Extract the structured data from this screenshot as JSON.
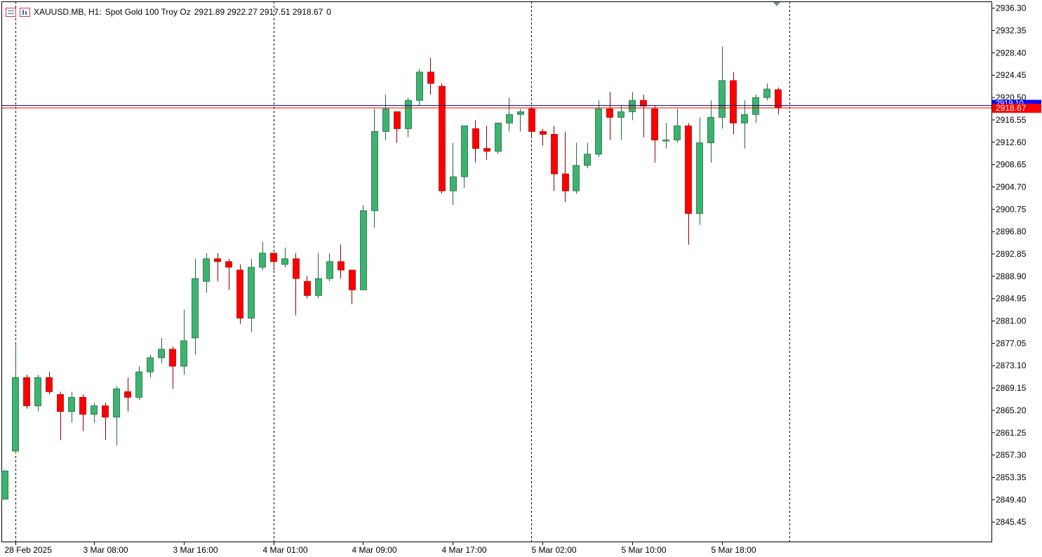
{
  "header": {
    "symbol": "XAUUSD.MB, H1:",
    "description": "Spot Gold 100 Troy Oz",
    "ohlc": "2921.89 2922.27 2917.51 2918.67",
    "extra": "0",
    "icons": [
      "list-icon",
      "chart-icon"
    ]
  },
  "colors": {
    "bull": "#3cb371",
    "bear": "#ff0000",
    "candle_outline": "#1f6b3a",
    "grid": "#000000",
    "bid_line": "#ff0000",
    "ask_line": "#000080",
    "bid_label_bg": "#ff0000",
    "ask_label_bg": "#0000ff"
  },
  "chart_data": {
    "type": "candlestick",
    "ylim": [
      2842.0,
      2937.5
    ],
    "y_ticks": [
      "2936.30",
      "2932.35",
      "2928.40",
      "2924.45",
      "2920.50",
      "2916.55",
      "2912.60",
      "2908.65",
      "2904.70",
      "2900.75",
      "2896.80",
      "2892.85",
      "2888.90",
      "2884.95",
      "2881.00",
      "2877.05",
      "2873.10",
      "2869.15",
      "2865.20",
      "2861.25",
      "2857.30",
      "2853.35",
      "2849.40",
      "2845.45"
    ],
    "x_labels": [
      "28 Feb 2025",
      "3 Mar 08:00",
      "3 Mar 16:00",
      "4 Mar 01:00",
      "4 Mar 09:00",
      "4 Mar 17:00",
      "5 Mar 02:00",
      "5 Mar 10:00",
      "5 Mar 18:00"
    ],
    "x_label_index": [
      1,
      8,
      16,
      24,
      32,
      40,
      48,
      56,
      64
    ],
    "day_separator_index": [
      1,
      24,
      47,
      70
    ],
    "bid_price": 2918.67,
    "bid_label": "2918.67",
    "ask_price": 2919.1,
    "ask_label": "2919.10",
    "candles": [
      [
        2849.5,
        2854.5,
        2849.5,
        2854.5
      ],
      [
        2858.0,
        2877.0,
        2857.5,
        2871.0
      ],
      [
        2871.0,
        2871.5,
        2865.5,
        2866.0
      ],
      [
        2866.0,
        2871.5,
        2865.0,
        2871.0
      ],
      [
        2871.0,
        2872.0,
        2868.0,
        2868.5
      ],
      [
        2868.0,
        2868.5,
        2860.0,
        2865.0
      ],
      [
        2865.0,
        2868.5,
        2863.0,
        2867.5
      ],
      [
        2867.5,
        2868.0,
        2861.5,
        2864.5
      ],
      [
        2864.5,
        2866.5,
        2863.0,
        2866.0
      ],
      [
        2866.0,
        2866.5,
        2860.0,
        2864.0
      ],
      [
        2864.0,
        2869.5,
        2859.0,
        2869.0
      ],
      [
        2868.5,
        2871.0,
        2865.0,
        2867.5
      ],
      [
        2867.5,
        2873.0,
        2867.0,
        2872.0
      ],
      [
        2872.0,
        2875.0,
        2871.0,
        2874.5
      ],
      [
        2874.5,
        2878.0,
        2873.5,
        2876.0
      ],
      [
        2876.0,
        2876.5,
        2869.0,
        2873.0
      ],
      [
        2873.0,
        2883.0,
        2871.5,
        2877.5
      ],
      [
        2878.0,
        2892.0,
        2875.0,
        2888.5
      ],
      [
        2888.0,
        2893.0,
        2886.0,
        2892.0
      ],
      [
        2892.0,
        2893.0,
        2888.0,
        2891.5
      ],
      [
        2891.5,
        2892.0,
        2886.5,
        2890.5
      ],
      [
        2890.0,
        2891.0,
        2880.5,
        2881.5
      ],
      [
        2881.5,
        2892.0,
        2879.0,
        2890.5
      ],
      [
        2890.5,
        2895.0,
        2890.0,
        2893.0
      ],
      [
        2893.0,
        2893.0,
        2890.0,
        2891.5
      ],
      [
        2891.0,
        2894.0,
        2890.5,
        2892.0
      ],
      [
        2892.0,
        2893.0,
        2882.0,
        2888.5
      ],
      [
        2888.0,
        2889.0,
        2885.0,
        2885.5
      ],
      [
        2885.5,
        2893.0,
        2885.0,
        2888.5
      ],
      [
        2888.5,
        2893.0,
        2888.0,
        2891.5
      ],
      [
        2891.5,
        2894.5,
        2888.5,
        2890.0
      ],
      [
        2890.0,
        2890.0,
        2884.0,
        2886.5
      ],
      [
        2886.5,
        2901.5,
        2886.5,
        2900.5
      ],
      [
        2900.5,
        2918.5,
        2897.5,
        2914.5
      ],
      [
        2914.5,
        2921.0,
        2913.0,
        2918.5
      ],
      [
        2918.0,
        2918.0,
        2912.5,
        2915.0
      ],
      [
        2915.0,
        2920.5,
        2913.5,
        2920.0
      ],
      [
        2920.0,
        2925.5,
        2919.0,
        2925.0
      ],
      [
        2925.0,
        2927.5,
        2921.0,
        2923.0
      ],
      [
        2922.5,
        2923.0,
        2903.5,
        2904.0
      ],
      [
        2904.0,
        2912.5,
        2901.5,
        2906.5
      ],
      [
        2906.5,
        2915.5,
        2904.5,
        2915.5
      ],
      [
        2915.0,
        2916.5,
        2909.0,
        2911.5
      ],
      [
        2911.5,
        2915.5,
        2909.5,
        2911.0
      ],
      [
        2911.0,
        2916.0,
        2910.5,
        2916.0
      ],
      [
        2916.0,
        2920.5,
        2914.5,
        2917.5
      ],
      [
        2917.5,
        2918.5,
        2914.5,
        2918.0
      ],
      [
        2918.5,
        2918.5,
        2913.5,
        2914.5
      ],
      [
        2914.5,
        2915.0,
        2912.0,
        2914.0
      ],
      [
        2914.0,
        2915.5,
        2904.0,
        2907.0
      ],
      [
        2907.0,
        2914.5,
        2902.0,
        2904.0
      ],
      [
        2904.0,
        2912.5,
        2903.5,
        2908.5
      ],
      [
        2908.5,
        2912.5,
        2908.0,
        2910.5
      ],
      [
        2910.5,
        2920.0,
        2910.0,
        2918.5
      ],
      [
        2918.5,
        2921.5,
        2913.0,
        2917.0
      ],
      [
        2917.0,
        2919.0,
        2913.0,
        2918.0
      ],
      [
        2918.0,
        2921.5,
        2916.5,
        2920.0
      ],
      [
        2920.0,
        2921.0,
        2913.5,
        2919.0
      ],
      [
        2918.5,
        2919.0,
        2909.0,
        2913.0
      ],
      [
        2913.0,
        2916.0,
        2911.5,
        2913.0
      ],
      [
        2913.0,
        2918.5,
        2912.5,
        2915.5
      ],
      [
        2915.5,
        2916.0,
        2894.5,
        2900.0
      ],
      [
        2900.0,
        2917.0,
        2898.0,
        2912.5
      ],
      [
        2912.5,
        2920.0,
        2909.0,
        2917.0
      ],
      [
        2917.0,
        2929.5,
        2915.0,
        2923.5
      ],
      [
        2923.5,
        2925.0,
        2914.0,
        2916.0
      ],
      [
        2916.0,
        2920.0,
        2911.5,
        2917.5
      ],
      [
        2917.5,
        2921.0,
        2916.0,
        2920.5
      ],
      [
        2920.5,
        2923.0,
        2920.0,
        2922.0
      ],
      [
        2921.89,
        2922.27,
        2917.51,
        2918.67
      ]
    ]
  }
}
